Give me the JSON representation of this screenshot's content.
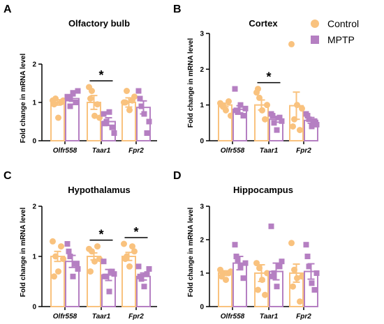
{
  "colors": {
    "control": "#f9c27e",
    "mptp": "#b57fc2"
  },
  "legend": {
    "position": "top-right",
    "control_label": "Control",
    "mptp_label": "MPTP"
  },
  "chart_data": [
    {
      "panel": "A",
      "type": "bar",
      "title": "Olfactory bulb",
      "ylabel": "Fold change in mRNA level",
      "ylim": [
        0,
        2
      ],
      "yticks": [
        "0",
        "1",
        "2"
      ],
      "categories": [
        "Olfr558",
        "Taar1",
        "Fpr2"
      ],
      "series": [
        {
          "name": "Control",
          "values": [
            1.0,
            1.0,
            1.0
          ],
          "errors": [
            0.07,
            0.18,
            0.12
          ],
          "points": [
            [
              1.05,
              1.1,
              0.6,
              1.0,
              1.05,
              0.95
            ],
            [
              1.4,
              1.3,
              0.65,
              0.95,
              0.6,
              1.1
            ],
            [
              1.0,
              1.3,
              0.8,
              1.05,
              1.15,
              1.0
            ]
          ]
        },
        {
          "name": "MPTP",
          "values": [
            1.1,
            0.5,
            0.87
          ],
          "errors": [
            0.07,
            0.1,
            0.17
          ],
          "points": [
            [
              1.15,
              0.9,
              1.25,
              1.0,
              1.3,
              1.1
            ],
            [
              0.7,
              0.5,
              0.75,
              0.35,
              0.2,
              0.45
            ],
            [
              1.3,
              0.9,
              0.7,
              0.2,
              0.5,
              1.1
            ]
          ]
        }
      ],
      "significance": [
        {
          "category": "Taar1",
          "label": "*"
        }
      ]
    },
    {
      "panel": "B",
      "type": "bar",
      "title": "Cortex",
      "ylabel": "Fold change in mRNA level",
      "ylim": [
        0,
        3
      ],
      "yticks": [
        "0",
        "1",
        "2",
        "3"
      ],
      "categories": [
        "Olfr558",
        "Taar1",
        "Fpr2"
      ],
      "series": [
        {
          "name": "Control",
          "values": [
            1.0,
            1.0,
            0.98
          ],
          "errors": [
            0.05,
            0.14,
            0.38
          ],
          "points": [
            [
              1.05,
              0.95,
              0.85,
              1.1,
              0.7,
              1.0
            ],
            [
              1.35,
              1.2,
              0.85,
              0.6,
              1.0,
              1.45
            ],
            [
              2.7,
              0.6,
              1.0,
              0.3,
              0.9,
              0.4
            ]
          ]
        },
        {
          "name": "MPTP",
          "values": [
            0.88,
            0.6,
            0.57
          ],
          "errors": [
            0.1,
            0.08,
            0.08
          ],
          "points": [
            [
              1.45,
              0.8,
              1.0,
              0.7,
              0.9,
              0.85
            ],
            [
              0.75,
              0.5,
              0.3,
              0.65,
              0.55,
              0.7
            ],
            [
              0.75,
              0.6,
              0.4,
              0.55,
              0.45,
              0.7
            ]
          ]
        }
      ],
      "significance": [
        {
          "category": "Taar1",
          "label": "*"
        }
      ]
    },
    {
      "panel": "C",
      "type": "bar",
      "title": "Hypothalamus",
      "ylabel": "Fold change in mRNA level",
      "ylim": [
        0,
        2
      ],
      "yticks": [
        "0",
        "1",
        "2"
      ],
      "categories": [
        "Olfr558",
        "Taar1",
        "Fpr2"
      ],
      "series": [
        {
          "name": "Control",
          "values": [
            1.0,
            1.0,
            1.0
          ],
          "errors": [
            0.1,
            0.07,
            0.08
          ],
          "points": [
            [
              1.3,
              1.0,
              0.7,
              1.2,
              0.95,
              0.6
            ],
            [
              1.15,
              1.1,
              0.9,
              1.2,
              0.95,
              0.7
            ],
            [
              1.25,
              1.0,
              0.8,
              1.2,
              1.1,
              0.95
            ]
          ]
        },
        {
          "name": "MPTP",
          "values": [
            0.9,
            0.63,
            0.6
          ],
          "errors": [
            0.12,
            0.11,
            0.07
          ],
          "points": [
            [
              1.25,
              1.0,
              0.6,
              0.85,
              0.75,
              1.1
            ],
            [
              0.9,
              0.6,
              0.3,
              0.7,
              0.65,
              0.6
            ],
            [
              0.8,
              0.55,
              0.4,
              0.65,
              0.75,
              0.6
            ]
          ]
        }
      ],
      "significance": [
        {
          "category": "Taar1",
          "label": "*"
        },
        {
          "category": "Fpr2",
          "label": "*"
        }
      ]
    },
    {
      "panel": "D",
      "type": "bar",
      "title": "Hippocampus",
      "ylabel": "Fold change in mRNA level",
      "ylim": [
        0,
        3
      ],
      "yticks": [
        "0",
        "1",
        "2",
        "3"
      ],
      "categories": [
        "Olfr558",
        "Taar1",
        "Fpr2"
      ],
      "series": [
        {
          "name": "Control",
          "values": [
            1.0,
            1.0,
            1.0
          ],
          "errors": [
            0.07,
            0.25,
            0.27
          ],
          "points": [
            [
              1.1,
              1.0,
              0.8,
              1.0,
              1.05,
              0.9
            ],
            [
              1.3,
              1.15,
              0.8,
              0.35,
              1.0,
              0.5
            ],
            [
              1.9,
              1.1,
              0.85,
              0.15,
              0.9,
              0.6
            ]
          ]
        },
        {
          "name": "MPTP",
          "values": [
            1.3,
            1.05,
            1.05
          ],
          "errors": [
            0.2,
            0.25,
            0.23
          ],
          "points": [
            [
              1.85,
              1.4,
              1.2,
              0.85,
              1.3,
              1.5
            ],
            [
              2.4,
              1.0,
              0.6,
              1.2,
              1.35,
              0.9
            ],
            [
              1.85,
              1.2,
              0.7,
              0.5,
              1.0,
              1.5
            ]
          ]
        }
      ],
      "significance": []
    }
  ]
}
